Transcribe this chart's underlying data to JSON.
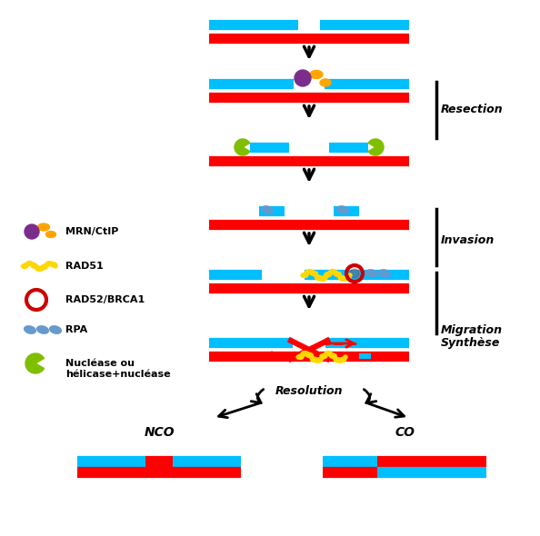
{
  "bg_color": "#ffffff",
  "red": "#FF0000",
  "blue": "#00BFFF",
  "black": "#000000",
  "yellow": "#FFD700",
  "purple": "#7B2D8B",
  "orange": "#FFA500",
  "green": "#7FBF00",
  "dark_red": "#CC0000",
  "steel_blue": "#6699CC",
  "label_resection": "Resection",
  "label_invasion": "Invasion",
  "label_migration": "Migration",
  "label_synthese": "Synthèse",
  "label_resolution": "Resolution",
  "label_nco": "NCO",
  "label_co": "CO",
  "legend_mrn": "MRN/CtIP",
  "legend_rad51": "RAD51",
  "legend_rad52": "RAD52/BRCA1",
  "legend_rpa": "RPA",
  "legend_nuclease": "Nucléase ou\nhélicase+nucléase",
  "font_size_label": 9,
  "font_size_legend": 8
}
